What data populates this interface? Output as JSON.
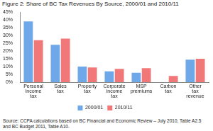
{
  "chart_data": {
    "type": "bar",
    "title": "Figure 2: Share of BC Tax Revenues By Source, 2000/01 and 2010/11",
    "categories": [
      "Personal income tax",
      "Sales tax",
      "Property tax",
      "Corporate income tax",
      "MSP premiums",
      "Carbon tax",
      "Other tax revenue"
    ],
    "series": [
      {
        "name": "2000/01",
        "color": "#6fa8e8",
        "values": [
          39,
          24,
          10,
          7,
          6,
          0,
          14.5
        ]
      },
      {
        "name": "2010/11",
        "color": "#f07878",
        "values": [
          27,
          28,
          9.5,
          8.5,
          9,
          4,
          15
        ]
      }
    ],
    "ylim": [
      0,
      45
    ],
    "yticks": [
      {
        "value": 0,
        "label": "0%"
      },
      {
        "value": 5,
        "label": "5%"
      },
      {
        "value": 10,
        "label": "10%"
      },
      {
        "value": 15,
        "label": "15%"
      },
      {
        "value": 20,
        "label": "20%"
      },
      {
        "value": 25,
        "label": "25%"
      },
      {
        "value": 30,
        "label": "30%"
      },
      {
        "value": 35,
        "label": "35%"
      },
      {
        "value": 40,
        "label": "40%"
      },
      {
        "value": 45,
        "label": "45%"
      }
    ],
    "grid": false,
    "legend": "bottom",
    "annotations": [
      "Source: CCPA calculations based on BC Financial and Economic Review – July 2010, Table A2.5 and BC Budget 2011, Table A10."
    ]
  }
}
